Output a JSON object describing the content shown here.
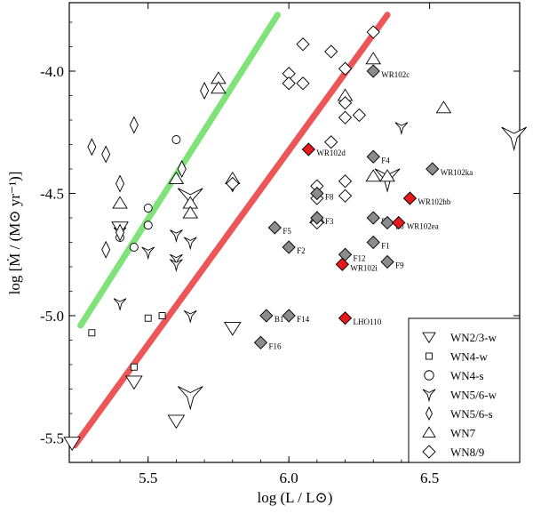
{
  "chart_data": {
    "type": "scatter",
    "xlabel": "log (L / L⊙)",
    "ylabel": "log [Ṁ / (M⊙ yr⁻¹)]",
    "xlim": [
      5.22,
      6.82
    ],
    "ylim": [
      -5.6,
      -3.72
    ],
    "x_ticks": [
      5.5,
      6.0,
      6.5
    ],
    "x_tick_labels": [
      "5.5",
      "6.0",
      "6.5"
    ],
    "y_ticks": [
      -5.5,
      -5.0,
      -4.5,
      -4.0
    ],
    "y_tick_labels": [
      "-5.5",
      "-5.0",
      "-4.5",
      "-4.0"
    ],
    "colors": {
      "green_line": "#7fe37a",
      "red_line": "#ec5656",
      "highlight_red": "#e8191b",
      "filled_grey": "#8c8c8c"
    },
    "trend_lines": [
      {
        "name": "green",
        "color": "#7fe37a",
        "x": [
          5.26,
          5.96
        ],
        "y": [
          -5.04,
          -3.77
        ]
      },
      {
        "name": "red",
        "color": "#ec5656",
        "x": [
          5.24,
          6.35
        ],
        "y": [
          -5.53,
          -3.77
        ]
      }
    ],
    "legend": [
      {
        "label": "WN2/3-w",
        "marker": "triangle-down"
      },
      {
        "label": "WN4-w",
        "marker": "square"
      },
      {
        "label": "WN4-s",
        "marker": "circle"
      },
      {
        "label": "WN5/6-w",
        "marker": "tri-down"
      },
      {
        "label": "WN5/6-s",
        "marker": "thin-diamond"
      },
      {
        "label": "WN7",
        "marker": "triangle-up"
      },
      {
        "label": "WN8/9",
        "marker": "diamond"
      }
    ],
    "series": [
      {
        "name": "WN2/3-w",
        "marker": "triangle-down",
        "size": 9,
        "points": [
          [
            5.23,
            -5.52
          ],
          [
            5.45,
            -5.27
          ],
          [
            5.6,
            -5.43
          ],
          [
            5.8,
            -5.05
          ],
          [
            5.4,
            -4.64
          ]
        ]
      },
      {
        "name": "WN4-w",
        "marker": "square",
        "size": 7,
        "points": [
          [
            5.3,
            -5.07
          ],
          [
            5.5,
            -5.01
          ],
          [
            5.55,
            -5.0
          ],
          [
            5.45,
            -5.21
          ]
        ]
      },
      {
        "name": "WN4-s",
        "marker": "circle",
        "size": 6,
        "points": [
          [
            5.6,
            -4.28
          ],
          [
            5.5,
            -4.56
          ],
          [
            5.5,
            -4.63
          ],
          [
            5.45,
            -4.72
          ],
          [
            5.4,
            -4.68
          ]
        ]
      },
      {
        "name": "WN5/6-w",
        "marker": "tri-down",
        "size": 7,
        "points": [
          [
            5.4,
            -4.95
          ],
          [
            5.5,
            -4.74
          ],
          [
            5.6,
            -4.67
          ],
          [
            5.6,
            -4.77
          ],
          [
            5.6,
            -4.79
          ],
          [
            5.65,
            -4.7
          ],
          [
            5.65,
            -5.0
          ],
          [
            5.4,
            -4.66
          ],
          [
            6.4,
            -4.23
          ]
        ]
      },
      {
        "name": "WN5/6-w large",
        "marker": "tri-down",
        "size": 14,
        "points": [
          [
            5.65,
            -4.52
          ],
          [
            5.65,
            -5.33
          ],
          [
            6.35,
            -4.44
          ],
          [
            6.8,
            -4.27
          ]
        ]
      },
      {
        "name": "WN5/6-s",
        "marker": "thin-diamond",
        "size": 9,
        "points": [
          [
            5.3,
            -4.31
          ],
          [
            5.35,
            -4.34
          ],
          [
            5.45,
            -4.22
          ],
          [
            5.4,
            -4.46
          ],
          [
            5.35,
            -4.73
          ],
          [
            5.62,
            -4.4
          ],
          [
            5.7,
            -4.08
          ],
          [
            5.8,
            -4.46
          ],
          [
            5.4,
            -4.66
          ]
        ]
      },
      {
        "name": "WN7",
        "marker": "triangle-up",
        "size": 8,
        "points": [
          [
            5.4,
            -4.54
          ],
          [
            5.6,
            -4.44
          ],
          [
            5.65,
            -4.54
          ],
          [
            5.65,
            -4.58
          ],
          [
            5.75,
            -4.03
          ],
          [
            5.75,
            -4.07
          ],
          [
            5.8,
            -4.44
          ],
          [
            6.3,
            -3.95
          ],
          [
            6.3,
            -4.43
          ],
          [
            6.35,
            -4.43
          ],
          [
            6.55,
            -4.15
          ],
          [
            6.2,
            -4.1
          ],
          [
            6.1,
            -4.6
          ]
        ]
      },
      {
        "name": "WN8/9",
        "marker": "diamond",
        "size": 7,
        "points": [
          [
            6.0,
            -4.01
          ],
          [
            6.05,
            -3.89
          ],
          [
            6.15,
            -3.92
          ],
          [
            6.3,
            -3.84
          ],
          [
            6.0,
            -4.05
          ],
          [
            6.05,
            -4.05
          ],
          [
            6.2,
            -3.99
          ],
          [
            6.2,
            -4.13
          ],
          [
            6.25,
            -4.18
          ],
          [
            6.15,
            -4.29
          ],
          [
            6.2,
            -4.19
          ],
          [
            6.1,
            -4.47
          ],
          [
            6.2,
            -4.45
          ],
          [
            6.1,
            -4.52
          ],
          [
            6.2,
            -4.51
          ],
          [
            6.1,
            -4.62
          ],
          [
            5.8,
            -4.46
          ]
        ]
      }
    ],
    "labeled_points": [
      {
        "label": "WR102c",
        "x": 6.3,
        "y": -4.0,
        "color": "grey"
      },
      {
        "label": "WR102d",
        "x": 6.07,
        "y": -4.32,
        "color": "red"
      },
      {
        "label": "F4",
        "x": 6.3,
        "y": -4.35,
        "color": "grey"
      },
      {
        "label": "WR102ka",
        "x": 6.51,
        "y": -4.4,
        "color": "grey"
      },
      {
        "label": "F8",
        "x": 6.1,
        "y": -4.5,
        "color": "grey"
      },
      {
        "label": "WR102hb",
        "x": 6.43,
        "y": -4.52,
        "color": "red"
      },
      {
        "label": "F3",
        "x": 6.1,
        "y": -4.6,
        "color": "grey"
      },
      {
        "label": "F7",
        "x": 6.3,
        "y": -4.6,
        "color": "grey"
      },
      {
        "label": "F6",
        "x": 6.35,
        "y": -4.62,
        "color": "grey"
      },
      {
        "label": "WR102ea",
        "x": 6.39,
        "y": -4.62,
        "color": "red"
      },
      {
        "label": "F5",
        "x": 5.95,
        "y": -4.64,
        "color": "grey"
      },
      {
        "label": "F1",
        "x": 6.3,
        "y": -4.7,
        "color": "grey"
      },
      {
        "label": "F2",
        "x": 6.0,
        "y": -4.72,
        "color": "grey"
      },
      {
        "label": "F12",
        "x": 6.2,
        "y": -4.75,
        "color": "grey"
      },
      {
        "label": "WR102i",
        "x": 6.19,
        "y": -4.79,
        "color": "red"
      },
      {
        "label": "F9",
        "x": 6.35,
        "y": -4.78,
        "color": "grey"
      },
      {
        "label": "B1",
        "x": 5.92,
        "y": -5.0,
        "color": "grey"
      },
      {
        "label": "F14",
        "x": 6.0,
        "y": -5.0,
        "color": "grey"
      },
      {
        "label": "LHO110",
        "x": 6.2,
        "y": -5.01,
        "color": "red"
      },
      {
        "label": "F16",
        "x": 5.9,
        "y": -5.11,
        "color": "grey"
      }
    ]
  }
}
